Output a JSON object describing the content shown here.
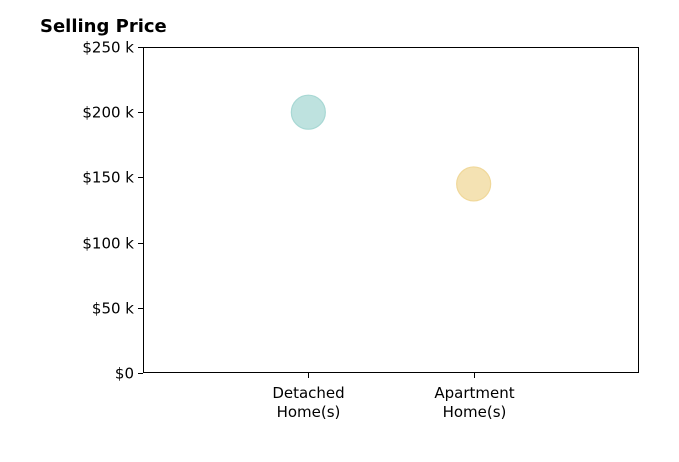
{
  "chart_data": {
    "type": "scatter",
    "title": "Selling Price",
    "categories": [
      "Detached\nHome(s)",
      "Apartment\nHome(s)"
    ],
    "points": [
      {
        "category": "Detached\nHome(s)",
        "value": 200000,
        "color": "#a8d8d4"
      },
      {
        "category": "Apartment\nHome(s)",
        "value": 145000,
        "color": "#f0d89a"
      }
    ],
    "yticks": [
      {
        "value": 0,
        "label": "$0"
      },
      {
        "value": 50000,
        "label": "$50 k"
      },
      {
        "value": 100000,
        "label": "$100 k"
      },
      {
        "value": 150000,
        "label": "$150 k"
      },
      {
        "value": 200000,
        "label": "$200 k"
      },
      {
        "value": 250000,
        "label": "$250 k"
      }
    ],
    "ylim": [
      0,
      250000
    ],
    "xlim": [
      -1,
      2
    ],
    "grid": false,
    "legend": "none",
    "xlabel": "",
    "ylabel": ""
  }
}
